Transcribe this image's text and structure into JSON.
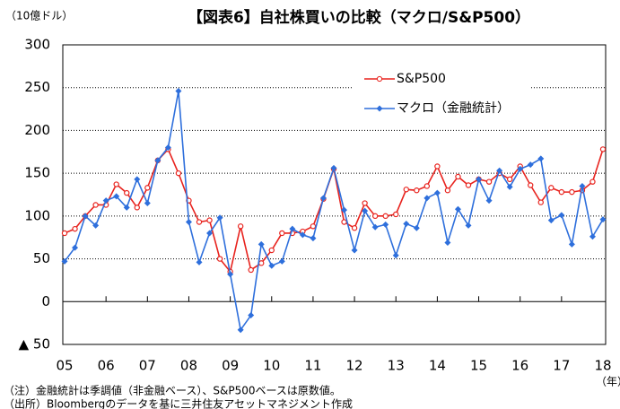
{
  "chart_data": {
    "type": "line",
    "title": "【図表6】自社株買いの比較（マクロ/S&P500）",
    "y_unit": "（10億ドル）",
    "x_unit": "（年）",
    "notes": [
      "（注）金融統計は季調値（非金融ベース）、S&P500ベースは原数値。",
      "（出所）Bloombergのデータを基に三井住友アセットマネジメント作成"
    ],
    "categories": [
      "05",
      null,
      null,
      null,
      "06",
      null,
      null,
      null,
      "07",
      null,
      null,
      null,
      "08",
      null,
      null,
      null,
      "09",
      null,
      null,
      null,
      "10",
      null,
      null,
      null,
      "11",
      null,
      null,
      null,
      "12",
      null,
      null,
      null,
      "13",
      null,
      null,
      null,
      "14",
      null,
      null,
      null,
      "15",
      null,
      null,
      null,
      "16",
      null,
      null,
      null,
      "17",
      null,
      null,
      null,
      "18"
    ],
    "series": [
      {
        "name": "S&P500",
        "color": "#e8231e",
        "marker": "circle",
        "values": [
          80,
          85,
          100,
          113,
          113,
          137,
          127,
          110,
          133,
          165,
          178,
          150,
          118,
          93,
          95,
          50,
          35,
          88,
          37,
          45,
          60,
          80,
          80,
          82,
          88,
          120,
          155,
          93,
          86,
          115,
          100,
          100,
          102,
          131,
          130,
          135,
          158,
          130,
          146,
          136,
          143,
          140,
          150,
          143,
          158,
          136,
          116,
          133,
          128,
          128,
          130,
          140,
          178
        ]
      },
      {
        "name": "マクロ（金融統計）",
        "color": "#2e6fdc",
        "marker": "diamond",
        "values": [
          47,
          63,
          100,
          89,
          118,
          123,
          110,
          143,
          115,
          165,
          180,
          246,
          93,
          46,
          80,
          98,
          32,
          -33,
          -16,
          67,
          42,
          47,
          85,
          78,
          74,
          121,
          156,
          107,
          60,
          106,
          87,
          90,
          54,
          91,
          86,
          121,
          127,
          69,
          108,
          89,
          143,
          118,
          153,
          134,
          155,
          160,
          167,
          95,
          101,
          67,
          135,
          76,
          96
        ]
      }
    ],
    "ylim": [
      -50,
      300
    ],
    "yticks": [
      {
        "value": -50,
        "label": "▲ 50"
      },
      0,
      50,
      100,
      150,
      200,
      250,
      300
    ],
    "grid": true,
    "legend": "upper right"
  }
}
